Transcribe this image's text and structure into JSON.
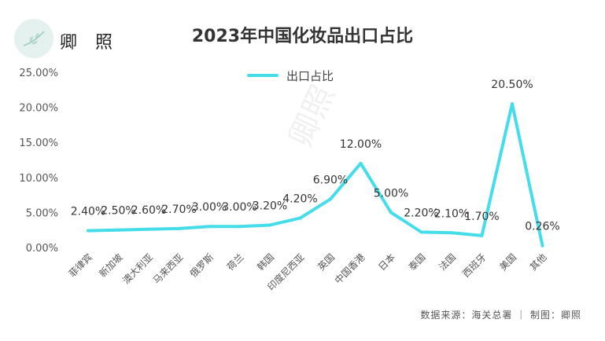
{
  "header": {
    "logo_text": "卿 照",
    "watermark": "卿照"
  },
  "source": "数据来源：海关总署 ｜ 制图：卿照",
  "colors": {
    "line": "#45dde9",
    "logo_bg": "#e4f1ee"
  },
  "chart_data": {
    "type": "line",
    "title": "2023年中国化妆品出口占比",
    "categories": [
      "菲律宾",
      "新加坡",
      "澳大利亚",
      "马来西亚",
      "俄罗斯",
      "荷兰",
      "韩国",
      "印度尼西亚",
      "英国",
      "中国香港",
      "日本",
      "泰国",
      "法国",
      "西班牙",
      "美国",
      "其他"
    ],
    "series": [
      {
        "name": "出口占比",
        "values": [
          2.4,
          2.5,
          2.6,
          2.7,
          3.0,
          3.0,
          3.2,
          4.2,
          6.9,
          12.0,
          5.0,
          2.2,
          2.1,
          1.7,
          20.5,
          0.26
        ],
        "labels": [
          "2.40%",
          "2.50%",
          "2.60%",
          "2.70%",
          "3.00%",
          "3.00%",
          "3.20%",
          "4.20%",
          "6.90%",
          "12.00%",
          "5.00%",
          "2.20%",
          "2.10%",
          "1.70%",
          "20.50%",
          "0.26%"
        ]
      }
    ],
    "ylim": [
      0,
      25
    ],
    "yticks": [
      "0.00%",
      "5.00%",
      "10.00%",
      "15.00%",
      "20.00%",
      "25.00%"
    ],
    "legend": "top-center",
    "grid": false
  }
}
